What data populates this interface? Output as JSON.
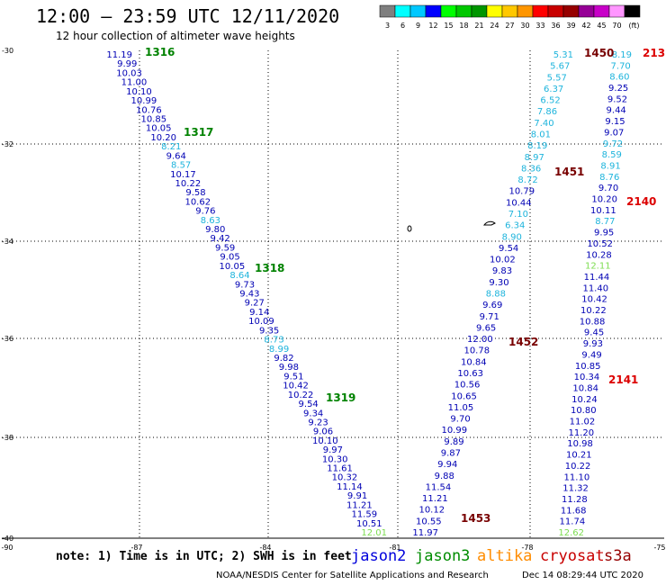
{
  "title": "12:00 – 23:59 UTC 12/11/2020",
  "subtitle": "12 hour collection of altimeter wave heights",
  "colorbar": {
    "labels": [
      "3",
      "6",
      "9",
      "12",
      "15",
      "18",
      "21",
      "24",
      "27",
      "30",
      "33",
      "36",
      "39",
      "42",
      "45",
      "70",
      "(ft)"
    ],
    "colors": [
      "#7f7f7f",
      "#00ffff",
      "#00c8ff",
      "#0000ff",
      "#00ff00",
      "#00c800",
      "#009600",
      "#ffff00",
      "#ffc800",
      "#ff9600",
      "#ff0000",
      "#c80000",
      "#960000",
      "#960096",
      "#c800c8",
      "#ff96ff",
      "#000000"
    ]
  },
  "axes": {
    "lat_ticks": [
      "-30",
      "-32",
      "-34",
      "-36",
      "-38",
      "-40"
    ],
    "lon_ticks": [
      "-90",
      "-87",
      "-84",
      "-81",
      "-78",
      "-75"
    ]
  },
  "tracks": [
    {
      "id": "t1",
      "values": [
        "11.19",
        "9.99",
        "10.03",
        "11.00",
        "10.10",
        "10.99",
        "10.76",
        "10.85",
        "10.05",
        "10.20",
        "8.21",
        "9.64",
        "8.57",
        "10.17",
        "10.22",
        "9.58",
        "10.62",
        "9.76",
        "8.63",
        "9.80",
        "9.42",
        "9.59",
        "9.05",
        "10.05",
        "8.64",
        "9.73",
        "9.43",
        "9.27",
        "9.14",
        "10.09",
        "9.35",
        "8.73",
        "8.99",
        "9.82",
        "9.98",
        "9.51",
        "10.42",
        "10.22",
        "9.54",
        "9.34",
        "9.23",
        "9.06",
        "10.10",
        "9.97",
        "10.30",
        "11.61",
        "10.32",
        "11.14",
        "9.91",
        "11.21",
        "11.59",
        "10.51",
        "12.01"
      ],
      "colors": [
        "b",
        "b",
        "b",
        "b",
        "b",
        "b",
        "b",
        "b",
        "b",
        "b",
        "c",
        "b",
        "c",
        "b",
        "b",
        "b",
        "b",
        "b",
        "c",
        "b",
        "b",
        "b",
        "b",
        "b",
        "c",
        "b",
        "b",
        "b",
        "b",
        "b",
        "b",
        "c",
        "c",
        "b",
        "b",
        "b",
        "b",
        "b",
        "b",
        "b",
        "b",
        "b",
        "b",
        "b",
        "b",
        "b",
        "b",
        "b",
        "b",
        "b",
        "b",
        "b",
        "g"
      ]
    },
    {
      "id": "t2",
      "values": [
        "5.31",
        "5.67",
        "5.57",
        "6.37",
        "6.52",
        "7.86",
        "7.40",
        "8.01",
        "8.19",
        "8.97",
        "8.36",
        "8.72",
        "10.79",
        "10.44",
        "7.10",
        "6.34",
        "8.90",
        "9.54",
        "10.02",
        "9.83",
        "9.30",
        "8.88",
        "9.69",
        "9.71",
        "9.65",
        "12.00",
        "10.78",
        "10.84",
        "10.63",
        "10.56",
        "10.65",
        "11.05",
        "9.70",
        "10.99",
        "9.89",
        "9.87",
        "9.94",
        "9.88",
        "11.54",
        "11.21",
        "10.12",
        "10.55",
        "11.97"
      ],
      "colors": [
        "c",
        "c",
        "c",
        "c",
        "c",
        "c",
        "c",
        "c",
        "c",
        "c",
        "c",
        "c",
        "b",
        "b",
        "c",
        "c",
        "c",
        "b",
        "b",
        "b",
        "b",
        "c",
        "b",
        "b",
        "b",
        "b",
        "b",
        "b",
        "b",
        "b",
        "b",
        "b",
        "b",
        "b",
        "b",
        "b",
        "b",
        "b",
        "b",
        "b",
        "b",
        "b",
        "b"
      ]
    },
    {
      "id": "t3",
      "values": [
        "8.19",
        "7.70",
        "8.60",
        "9.25",
        "9.52",
        "9.44",
        "9.15",
        "9.07",
        "9.72",
        "8.59",
        "8.91",
        "8.76",
        "9.70",
        "10.20",
        "10.11",
        "8.77",
        "9.95",
        "10.52",
        "10.28",
        "12.11",
        "11.44",
        "11.40",
        "10.42",
        "10.22",
        "10.88",
        "9.45",
        "9.93",
        "9.49",
        "10.85",
        "10.34",
        "10.84",
        "10.24",
        "10.80",
        "11.02",
        "11.20",
        "10.98",
        "10.21",
        "10.22",
        "11.10",
        "11.32",
        "11.28",
        "11.68",
        "11.74",
        "12.62"
      ],
      "colors": [
        "c",
        "c",
        "c",
        "b",
        "b",
        "b",
        "b",
        "b",
        "c",
        "c",
        "c",
        "c",
        "b",
        "b",
        "b",
        "c",
        "b",
        "b",
        "b",
        "g",
        "b",
        "b",
        "b",
        "b",
        "b",
        "b",
        "b",
        "b",
        "b",
        "b",
        "b",
        "b",
        "b",
        "b",
        "b",
        "b",
        "b",
        "b",
        "b",
        "b",
        "b",
        "b",
        "b",
        "g"
      ]
    }
  ],
  "pass_labels": [
    {
      "text": "1316",
      "sat": "jason3"
    },
    {
      "text": "1317",
      "sat": "jason3"
    },
    {
      "text": "1318",
      "sat": "jason3"
    },
    {
      "text": "1319",
      "sat": "jason3"
    },
    {
      "text": "1450",
      "sat": "cryosat"
    },
    {
      "text": "1451",
      "sat": "cryosat"
    },
    {
      "text": "1452",
      "sat": "cryosat"
    },
    {
      "text": "1453",
      "sat": "cryosat"
    },
    {
      "text": "213",
      "sat": "s3a"
    },
    {
      "text": "2140",
      "sat": "s3a"
    },
    {
      "text": "2141",
      "sat": "s3a"
    }
  ],
  "satellites": [
    {
      "name": "jason2",
      "color": "#0000dc"
    },
    {
      "name": "jason3",
      "color": "#008c00"
    },
    {
      "name": "altika",
      "color": "#ff8c00"
    },
    {
      "name": "cryosat",
      "color": "#c80000"
    },
    {
      "name": "s3a",
      "color": "#960000"
    }
  ],
  "note": "note: 1) Time is in UTC; 2) SWH is in feet",
  "credit": "NOAA/NESDIS Center for Satellite Applications and Research",
  "timestamp": "Dec 14 08:29:44 UTC 2020",
  "palette": {
    "b": "#0000b4",
    "c": "#1eb4dc",
    "g": "#7cdc50",
    "pass_green": "#008200",
    "pass_dark": "#780000",
    "pass_red": "#dc0000"
  }
}
